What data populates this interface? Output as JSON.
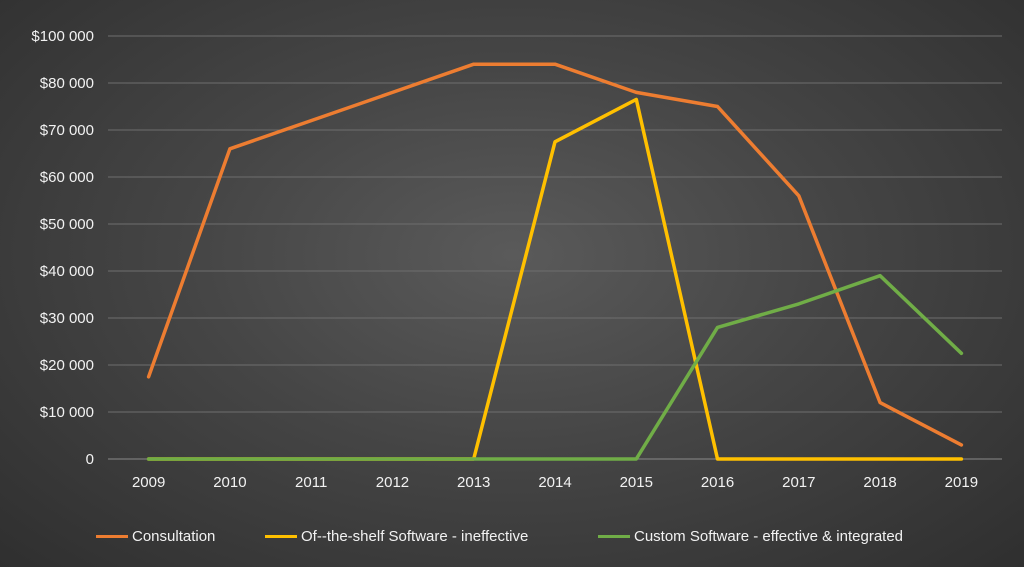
{
  "chart_data": {
    "type": "line",
    "categories": [
      "2009",
      "2010",
      "2011",
      "2012",
      "2013",
      "2014",
      "2015",
      "2016",
      "2017",
      "2018",
      "2019"
    ],
    "y_ticks": [
      0,
      10000,
      20000,
      30000,
      40000,
      50000,
      60000,
      70000,
      80000,
      100000
    ],
    "y_tick_labels": [
      "0",
      "$10 000",
      "$20 000",
      "$30 000",
      "$40 000",
      "$50 000",
      "$60 000",
      "$70 000",
      "$80 000",
      "$100 000"
    ],
    "ylim": [
      0,
      90000
    ],
    "grid": true,
    "legend_position": "bottom",
    "series": [
      {
        "name": "Consultation",
        "color": "#ed7d31",
        "values": [
          17500,
          66000,
          72000,
          78000,
          84000,
          84000,
          78000,
          75000,
          56000,
          12000,
          3000
        ]
      },
      {
        "name": "Of--the-shelf Software - ineffective",
        "color": "#ffc000",
        "values": [
          0,
          0,
          0,
          0,
          0,
          67500,
          76500,
          0,
          0,
          0,
          0
        ]
      },
      {
        "name": "Custom Software - effective & integrated",
        "color": "#70ad47",
        "values": [
          0,
          0,
          0,
          0,
          0,
          0,
          0,
          28000,
          33000,
          39000,
          22500
        ]
      }
    ]
  }
}
